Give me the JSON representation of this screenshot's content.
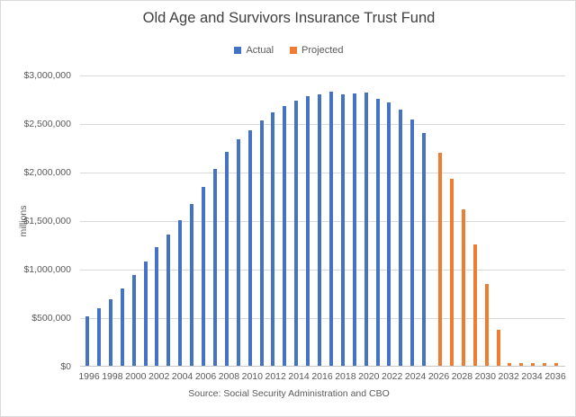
{
  "chart": {
    "title": "Old Age and Survivors Insurance Trust Fund",
    "y_axis_title": "millions",
    "source_note": "Source: Social Security Administration and CBO",
    "colors": {
      "actual": "#4472C4",
      "projected": "#ED7D31",
      "title_text": "#404040",
      "axis_text": "#595959",
      "gridline": "#D9D9D9",
      "background": "#FFFFFF"
    }
  },
  "chart_data": {
    "type": "bar",
    "title": "Old Age and Survivors Insurance Trust Fund",
    "xlabel": "",
    "ylabel": "millions",
    "ylim": [
      0,
      3000000
    ],
    "y_tick_interval": 500000,
    "y_tick_labels": [
      "$0",
      "$500,000",
      "$1,000,000",
      "$1,500,000",
      "$2,000,000",
      "$2,500,000",
      "$3,000,000"
    ],
    "x_tick_labels": [
      "1996",
      "1998",
      "2000",
      "2002",
      "2004",
      "2006",
      "2008",
      "2010",
      "2012",
      "2014",
      "2016",
      "2018",
      "2020",
      "2022",
      "2024",
      "2026",
      "2028",
      "2030",
      "2032",
      "2034",
      "2036"
    ],
    "grid": true,
    "legend_position": "top",
    "source": "Source: Social Security Administration and CBO",
    "categories": [
      1996,
      1997,
      1998,
      1999,
      2000,
      2001,
      2002,
      2003,
      2004,
      2005,
      2006,
      2007,
      2008,
      2009,
      2010,
      2011,
      2012,
      2013,
      2014,
      2015,
      2016,
      2017,
      2018,
      2019,
      2020,
      2021,
      2022,
      2023,
      2024,
      2025,
      2026,
      2027,
      2028,
      2029,
      2030,
      2031,
      2032,
      2033,
      2034,
      2035,
      2036
    ],
    "series": [
      {
        "name": "Actual",
        "color": "#4472C4",
        "start_year": 1996,
        "values": [
          514000,
          589000,
          682000,
          799000,
          931000,
          1072000,
          1218000,
          1355000,
          1501000,
          1663000,
          1844000,
          2024000,
          2203000,
          2337000,
          2429000,
          2524000,
          2610000,
          2674000,
          2729000,
          2780000,
          2801000,
          2820000,
          2795000,
          2804000,
          2811000,
          2753000,
          2712000,
          2641000,
          2540000,
          2400000
        ]
      },
      {
        "name": "Projected",
        "color": "#ED7D31",
        "start_year": 2026,
        "values": [
          2190000,
          1930000,
          1615000,
          1250000,
          840000,
          370000,
          30000,
          30000,
          30000,
          30000,
          30000
        ]
      }
    ]
  }
}
